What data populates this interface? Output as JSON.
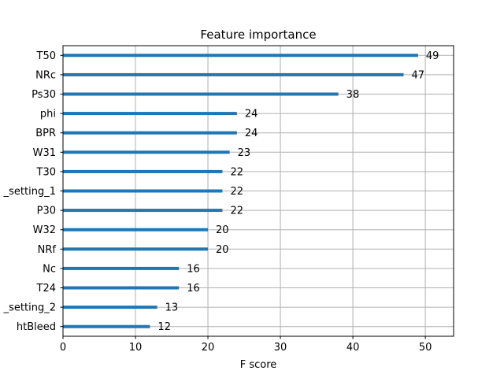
{
  "chart_data": {
    "type": "bar",
    "orientation": "horizontal",
    "title": "Feature importance",
    "xlabel": "F score",
    "ylabel": "",
    "categories": [
      "T50",
      "NRc",
      "Ps30",
      "phi",
      "BPR",
      "W31",
      "T30",
      "_setting_1",
      "P30",
      "W32",
      "NRf",
      "Nc",
      "T24",
      "_setting_2",
      "htBleed"
    ],
    "values": [
      49,
      47,
      38,
      24,
      24,
      23,
      22,
      22,
      22,
      20,
      20,
      16,
      16,
      13,
      12
    ],
    "data_labels": [
      "49",
      "47",
      "38",
      "24",
      "24",
      "23",
      "22",
      "22",
      "22",
      "20",
      "20",
      "16",
      "16",
      "13",
      "12"
    ],
    "xlim": [
      0,
      53.9
    ],
    "xticks": [
      0,
      10,
      20,
      30,
      40,
      50
    ],
    "xtick_labels": [
      "0",
      "10",
      "20",
      "30",
      "40",
      "50"
    ],
    "grid": true,
    "bar_color": "#1f77b4",
    "grid_color": "#b0b0b0"
  }
}
